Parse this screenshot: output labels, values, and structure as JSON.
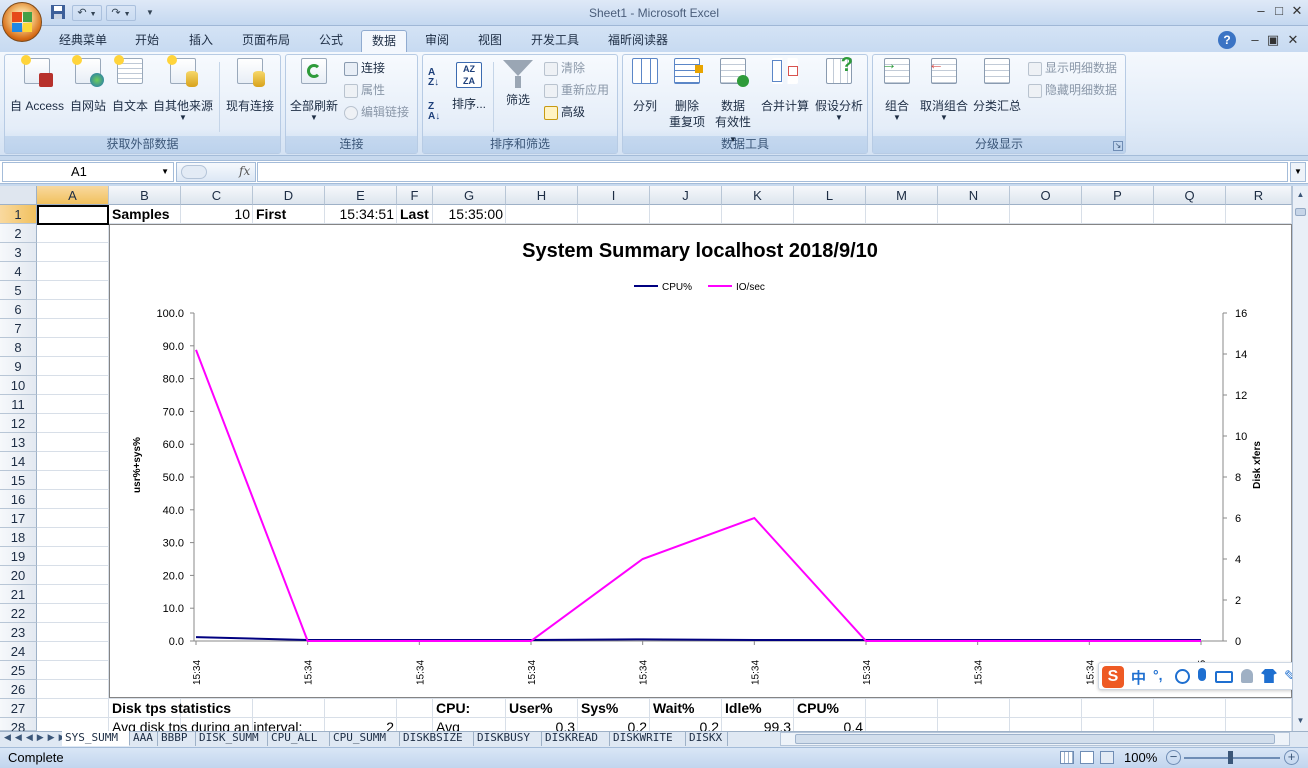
{
  "window": {
    "title": "Sheet1 - Microsoft Excel",
    "minimize": "–",
    "maximize": "□",
    "close": "✕",
    "doc_minimize": "–",
    "doc_restore": "▣",
    "doc_close": "✕",
    "help": "?"
  },
  "qat": {
    "save": "💾",
    "undo": "↶",
    "redo": "↷",
    "more": "▼"
  },
  "tabs": [
    "经典菜单",
    "开始",
    "插入",
    "页面布局",
    "公式",
    "数据",
    "审阅",
    "视图",
    "开发工具",
    "福昕阅读器"
  ],
  "active_tab": "数据",
  "ribbon": {
    "get_external": {
      "label": "获取外部数据",
      "access": "自 Access",
      "web": "自网站",
      "text": "自文本",
      "other": "自其他来源",
      "existing": "现有连接"
    },
    "connections": {
      "label": "连接",
      "refresh_all": "全部刷新",
      "connections": "连接",
      "properties": "属性",
      "edit_links": "编辑链接"
    },
    "sort_filter": {
      "label": "排序和筛选",
      "sort": "排序...",
      "filter": "筛选",
      "clear": "清除",
      "reapply": "重新应用",
      "advanced": "高级"
    },
    "data_tools": {
      "label": "数据工具",
      "text_to_columns": "分列",
      "remove_dup_1": "删除",
      "remove_dup_2": "重复项",
      "validation_1": "数据",
      "validation_2": "有效性",
      "consolidate": "合并计算",
      "whatif": "假设分析"
    },
    "outline": {
      "label": "分级显示",
      "group": "组合",
      "ungroup": "取消组合",
      "subtotal": "分类汇总",
      "show_detail": "显示明细数据",
      "hide_detail": "隐藏明细数据"
    }
  },
  "formula_bar": {
    "name_box": "A1",
    "fx": "fx",
    "formula": ""
  },
  "columns": [
    "A",
    "B",
    "C",
    "D",
    "E",
    "F",
    "G",
    "H",
    "I",
    "J",
    "K",
    "L",
    "M",
    "N",
    "O",
    "P",
    "Q",
    "R"
  ],
  "rows": [
    "1",
    "2",
    "3",
    "4",
    "5",
    "6",
    "7",
    "8",
    "9",
    "10",
    "11",
    "12",
    "13",
    "14",
    "15",
    "16",
    "17",
    "18",
    "19",
    "20",
    "21",
    "22",
    "23",
    "24",
    "25",
    "26",
    "27",
    "28"
  ],
  "cells": {
    "B1": "Samples",
    "C1": "10",
    "D1": "First",
    "E1": "15:34:51",
    "F1": "Last",
    "G1": "15:35:00",
    "B27": "Disk tps statistics",
    "G27": "CPU:",
    "H27": "User%",
    "I27": "Sys%",
    "J27": "Wait%",
    "K27": "Idle%",
    "L27": "CPU%",
    "B28": "Avg disk tps during an interval:",
    "D28": "2",
    "G28": "Avg",
    "H28": "0.3",
    "I28": "0.2",
    "J28": "0.2",
    "K28": "99.3",
    "L28": "0.4"
  },
  "chart_data": {
    "type": "line",
    "title": "System Summary localhost  2018/9/10",
    "ylabel": "usr%+sys%",
    "y2label": "Disk xfers",
    "ylim": [
      0,
      100
    ],
    "y2lim": [
      0,
      16
    ],
    "yticks": [
      "100.0",
      "90.0",
      "80.0",
      "70.0",
      "60.0",
      "50.0",
      "40.0",
      "30.0",
      "20.0",
      "10.0",
      "0.0"
    ],
    "y2ticks": [
      "16",
      "14",
      "12",
      "10",
      "8",
      "6",
      "4",
      "2",
      "0"
    ],
    "categories": [
      "15:34",
      "15:34",
      "15:34",
      "15:34",
      "15:34",
      "15:34",
      "15:34",
      "15:34",
      "15:34",
      "15:35"
    ],
    "series": [
      {
        "name": "CPU%",
        "axis": "left",
        "color": "#000080",
        "values": [
          1.2,
          0.3,
          0.3,
          0.3,
          0.5,
          0.3,
          0.3,
          0.3,
          0.3,
          0.3
        ]
      },
      {
        "name": "IO/sec",
        "axis": "right",
        "color": "#ff00ff",
        "values": [
          14.2,
          0,
          0,
          0,
          4,
          6,
          0,
          0,
          0,
          0
        ]
      }
    ],
    "legend": "top"
  },
  "sheet_tabs": [
    "SYS_SUMM",
    "AAA",
    "BBBP",
    "DISK_SUMM",
    "CPU_ALL",
    "CPU_SUMM",
    "DISKBSIZE",
    "DISKBUSY",
    "DISKREAD",
    "DISKWRITE",
    "DISKX"
  ],
  "active_sheet": "SYS_SUMM",
  "status": {
    "text": "Complete",
    "zoom": "100%"
  },
  "ime": {
    "lang": "中",
    "punct": "°,"
  }
}
